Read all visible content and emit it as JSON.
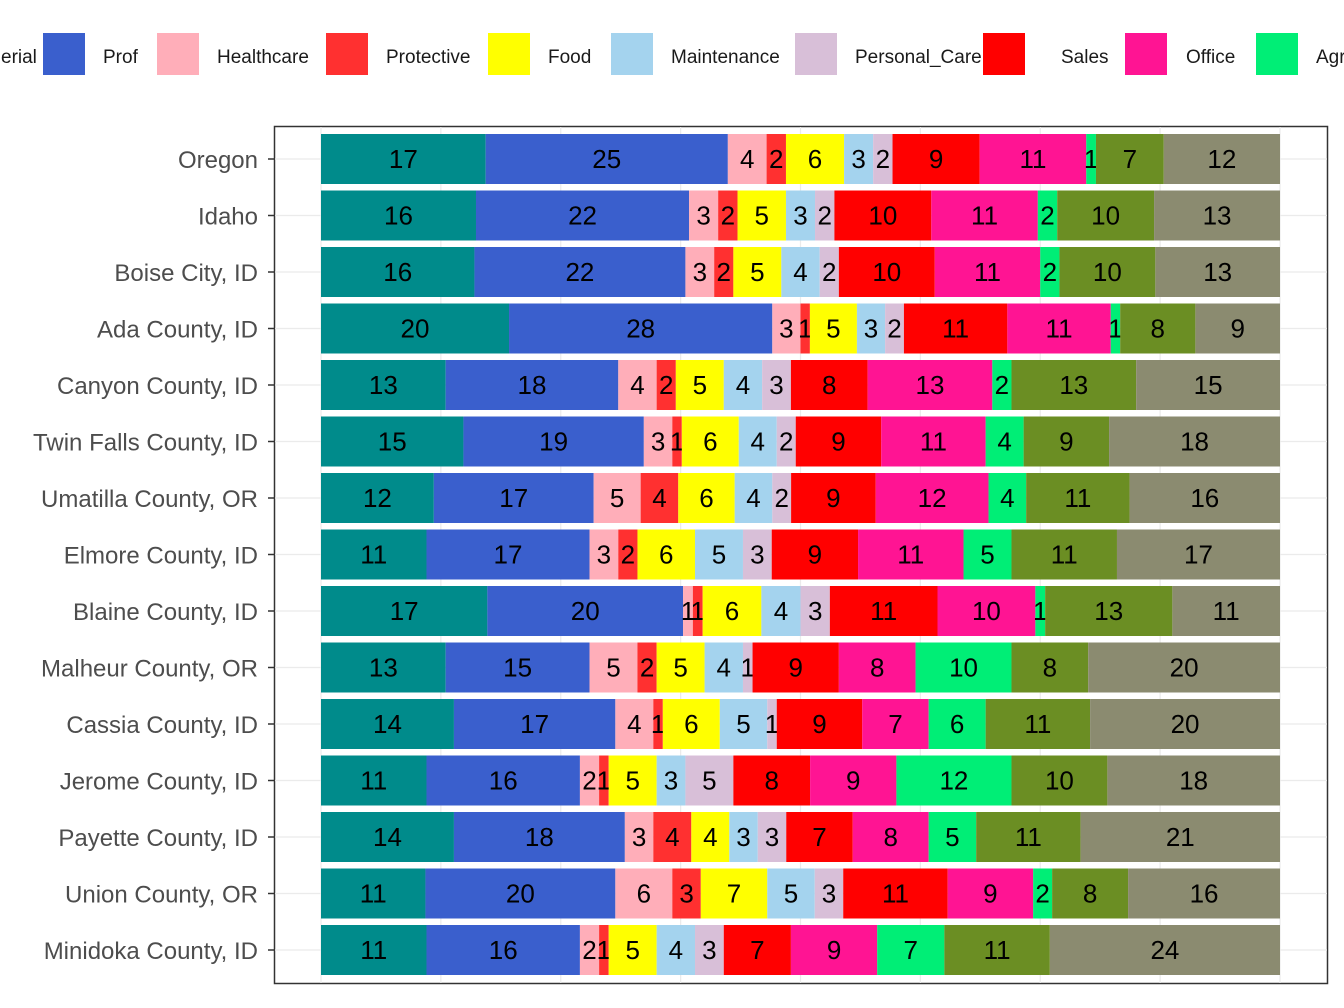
{
  "chart_data": {
    "type": "bar",
    "orientation": "horizontal",
    "stacked": true,
    "normalized": true,
    "title": "",
    "xlabel": "",
    "ylabel": "",
    "xlim": [
      0,
      100
    ],
    "grid": true,
    "legend_position": "top",
    "categories": [
      "Oregon",
      "Idaho",
      "Boise City, ID",
      "Ada County, ID",
      "Canyon County, ID",
      "Twin Falls County, ID",
      "Umatilla County, OR",
      "Elmore County, ID",
      "Blaine County, ID",
      "Malheur County, OR",
      "Cassia County, ID",
      "Jerome County, ID",
      "Payette County, ID",
      "Union County, OR",
      "Minidoka County, ID"
    ],
    "legend": [
      {
        "name": "erial",
        "color": "#008B8B"
      },
      {
        "name": "Prof",
        "color": "#3A5FCD"
      },
      {
        "name": "Healthcare",
        "color": "#FFAEB9"
      },
      {
        "name": "Protective",
        "color": "#FF3030"
      },
      {
        "name": "Food",
        "color": "#FFFF00"
      },
      {
        "name": "Maintenance",
        "color": "#A4D3EE"
      },
      {
        "name": "Personal_Care",
        "color": "#D8BFD8"
      },
      {
        "name": "Sales",
        "color": "#FF0000"
      },
      {
        "name": "Office",
        "color": "#FF1493"
      },
      {
        "name": "Agr",
        "color": "#00EE76"
      }
    ],
    "series": [
      {
        "color": "#008B8B",
        "values": [
          17,
          16,
          16,
          20,
          13,
          15,
          12,
          11,
          17,
          13,
          14,
          11,
          14,
          11,
          11
        ]
      },
      {
        "color": "#3A5FCD",
        "values": [
          25,
          22,
          22,
          28,
          18,
          19,
          17,
          17,
          20,
          15,
          17,
          16,
          18,
          20,
          16
        ]
      },
      {
        "color": "#FFAEB9",
        "values": [
          4,
          3,
          3,
          3,
          4,
          3,
          5,
          3,
          1,
          5,
          4,
          2,
          3,
          6,
          2
        ]
      },
      {
        "color": "#FF3030",
        "values": [
          2,
          2,
          2,
          1,
          2,
          1,
          4,
          2,
          1,
          2,
          1,
          1,
          4,
          3,
          1
        ]
      },
      {
        "color": "#FFFF00",
        "values": [
          6,
          5,
          5,
          5,
          5,
          6,
          6,
          6,
          6,
          5,
          6,
          5,
          4,
          7,
          5
        ]
      },
      {
        "color": "#A4D3EE",
        "values": [
          3,
          3,
          4,
          3,
          4,
          4,
          4,
          5,
          4,
          4,
          5,
          3,
          3,
          5,
          4
        ]
      },
      {
        "color": "#D8BFD8",
        "values": [
          2,
          2,
          2,
          2,
          3,
          2,
          2,
          3,
          3,
          1,
          1,
          5,
          3,
          3,
          3
        ]
      },
      {
        "color": "#FF0000",
        "values": [
          9,
          10,
          10,
          11,
          8,
          9,
          9,
          9,
          11,
          9,
          9,
          8,
          7,
          11,
          7
        ]
      },
      {
        "color": "#FF1493",
        "values": [
          11,
          11,
          11,
          11,
          13,
          11,
          12,
          11,
          10,
          8,
          7,
          9,
          8,
          9,
          9
        ]
      },
      {
        "color": "#00EE76",
        "values": [
          1,
          2,
          2,
          1,
          2,
          4,
          4,
          5,
          1,
          10,
          6,
          12,
          5,
          2,
          7
        ]
      },
      {
        "color": "#6B8E23",
        "values": [
          7,
          10,
          10,
          8,
          13,
          9,
          11,
          11,
          13,
          8,
          11,
          10,
          11,
          8,
          11
        ]
      },
      {
        "color": "#8B8B70",
        "values": [
          12,
          13,
          13,
          9,
          15,
          18,
          16,
          17,
          11,
          20,
          20,
          18,
          21,
          16,
          24
        ]
      }
    ]
  }
}
